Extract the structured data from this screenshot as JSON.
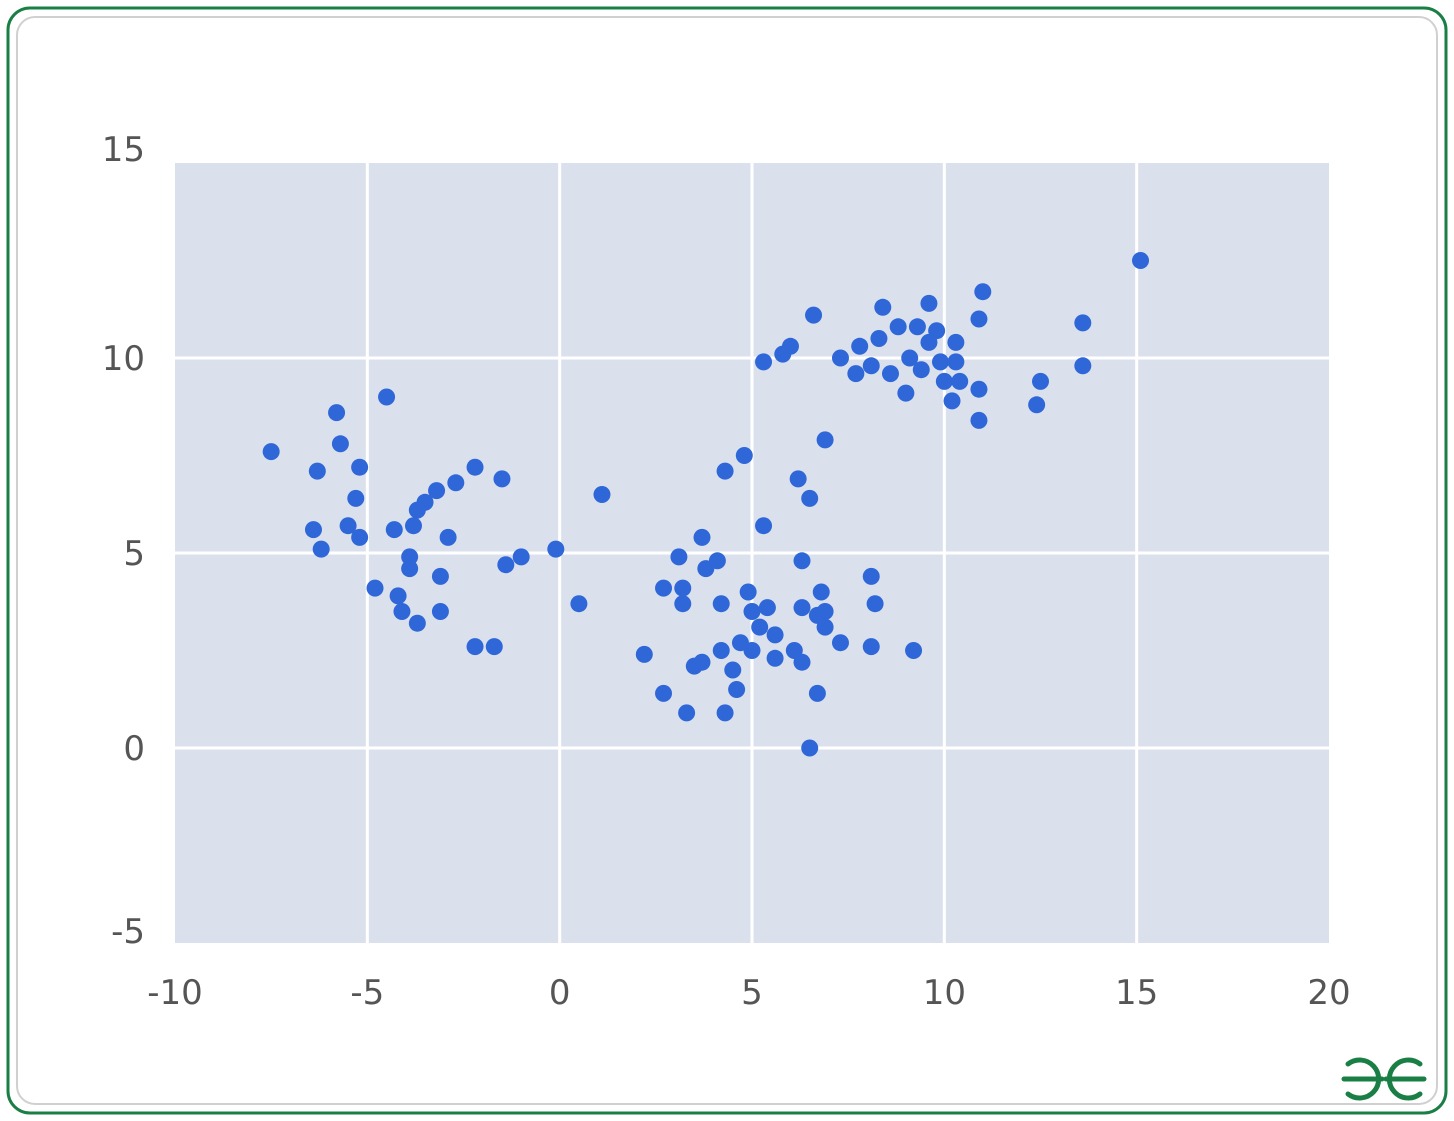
{
  "colors": {
    "border": "#1a7f45",
    "plot_bg": "#dbe1ec",
    "grid": "#ffffff",
    "marker": "#2f67d8",
    "tick_text": "#555555",
    "logo": "#1a7f45"
  },
  "logo": {
    "icon": "geeksforgeeks-logo-icon"
  },
  "chart_data": {
    "type": "scatter",
    "title": "",
    "xlabel": "",
    "ylabel": "",
    "xlim": [
      -10,
      20
    ],
    "ylim": [
      -5,
      15
    ],
    "grid": true,
    "x_ticks": [
      -10,
      -5,
      0,
      5,
      10,
      15,
      20
    ],
    "y_ticks": [
      -5,
      0,
      5,
      10,
      15
    ],
    "x_tick_labels": [
      "-10",
      "-5",
      "0",
      "5",
      "10",
      "15",
      "20"
    ],
    "y_tick_labels": [
      "-5",
      "0",
      "5",
      "10",
      "15"
    ],
    "series": [
      {
        "points": [
          [
            -7.5,
            7.6
          ],
          [
            -6.4,
            5.6
          ],
          [
            -6.3,
            7.1
          ],
          [
            -6.2,
            5.1
          ],
          [
            -5.8,
            8.6
          ],
          [
            -5.7,
            7.8
          ],
          [
            -5.5,
            5.7
          ],
          [
            -5.3,
            6.4
          ],
          [
            -5.2,
            7.2
          ],
          [
            -5.2,
            5.4
          ],
          [
            -4.8,
            4.1
          ],
          [
            -4.5,
            9.0
          ],
          [
            -4.3,
            5.6
          ],
          [
            -4.2,
            3.9
          ],
          [
            -4.1,
            3.5
          ],
          [
            -3.9,
            4.9
          ],
          [
            -3.9,
            4.6
          ],
          [
            -3.8,
            5.7
          ],
          [
            -3.7,
            6.1
          ],
          [
            -3.7,
            3.2
          ],
          [
            -3.5,
            6.3
          ],
          [
            -3.2,
            6.6
          ],
          [
            -3.1,
            3.5
          ],
          [
            -3.1,
            4.4
          ],
          [
            -2.9,
            5.4
          ],
          [
            -2.7,
            6.8
          ],
          [
            -2.2,
            7.2
          ],
          [
            -2.2,
            2.6
          ],
          [
            -1.7,
            2.6
          ],
          [
            -1.5,
            6.9
          ],
          [
            -1.4,
            4.7
          ],
          [
            -1.0,
            4.9
          ],
          [
            -0.1,
            5.1
          ],
          [
            0.5,
            3.7
          ],
          [
            1.1,
            6.5
          ],
          [
            2.2,
            2.4
          ],
          [
            2.7,
            4.1
          ],
          [
            2.7,
            1.4
          ],
          [
            3.1,
            4.9
          ],
          [
            3.2,
            4.1
          ],
          [
            3.2,
            3.7
          ],
          [
            3.3,
            0.9
          ],
          [
            3.5,
            2.1
          ],
          [
            3.7,
            5.4
          ],
          [
            3.7,
            2.2
          ],
          [
            3.8,
            4.6
          ],
          [
            4.1,
            4.8
          ],
          [
            4.2,
            3.7
          ],
          [
            4.2,
            2.5
          ],
          [
            4.3,
            0.9
          ],
          [
            4.3,
            7.1
          ],
          [
            4.5,
            2.0
          ],
          [
            4.6,
            1.5
          ],
          [
            4.7,
            2.7
          ],
          [
            4.8,
            7.5
          ],
          [
            4.9,
            4.0
          ],
          [
            5.0,
            3.5
          ],
          [
            5.0,
            2.5
          ],
          [
            5.2,
            3.1
          ],
          [
            5.3,
            5.7
          ],
          [
            5.3,
            9.9
          ],
          [
            5.4,
            3.6
          ],
          [
            5.6,
            2.9
          ],
          [
            5.6,
            2.3
          ],
          [
            5.8,
            10.1
          ],
          [
            6.0,
            10.3
          ],
          [
            6.1,
            2.5
          ],
          [
            6.2,
            6.9
          ],
          [
            6.3,
            4.8
          ],
          [
            6.3,
            3.6
          ],
          [
            6.3,
            2.2
          ],
          [
            6.5,
            6.4
          ],
          [
            6.5,
            0.0
          ],
          [
            6.6,
            11.1
          ],
          [
            6.7,
            3.4
          ],
          [
            6.7,
            1.4
          ],
          [
            6.8,
            4.0
          ],
          [
            6.9,
            3.5
          ],
          [
            6.9,
            3.1
          ],
          [
            6.9,
            7.9
          ],
          [
            7.3,
            10.0
          ],
          [
            7.3,
            2.7
          ],
          [
            7.7,
            9.6
          ],
          [
            7.8,
            10.3
          ],
          [
            8.1,
            9.8
          ],
          [
            8.1,
            4.4
          ],
          [
            8.1,
            2.6
          ],
          [
            8.2,
            3.7
          ],
          [
            8.3,
            10.5
          ],
          [
            8.4,
            11.3
          ],
          [
            8.6,
            9.6
          ],
          [
            8.8,
            10.8
          ],
          [
            9.0,
            9.1
          ],
          [
            9.1,
            10.0
          ],
          [
            9.2,
            2.5
          ],
          [
            9.3,
            10.8
          ],
          [
            9.4,
            9.7
          ],
          [
            9.6,
            11.4
          ],
          [
            9.6,
            10.4
          ],
          [
            9.8,
            10.7
          ],
          [
            9.9,
            9.9
          ],
          [
            10.0,
            9.4
          ],
          [
            10.2,
            8.9
          ],
          [
            10.3,
            10.4
          ],
          [
            10.3,
            9.9
          ],
          [
            10.4,
            9.4
          ],
          [
            10.9,
            11.0
          ],
          [
            10.9,
            9.2
          ],
          [
            10.9,
            8.4
          ],
          [
            11.0,
            11.7
          ],
          [
            12.4,
            8.8
          ],
          [
            12.5,
            9.4
          ],
          [
            13.6,
            10.9
          ],
          [
            13.6,
            9.8
          ],
          [
            15.1,
            12.5
          ]
        ]
      }
    ]
  }
}
